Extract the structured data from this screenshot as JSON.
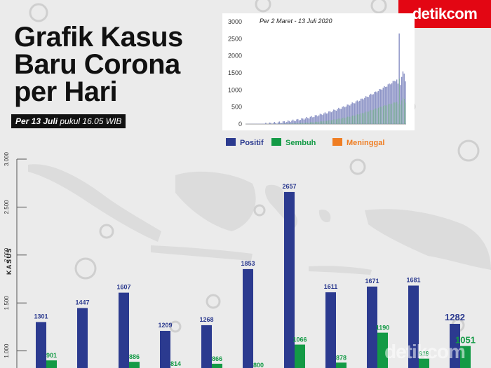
{
  "brand": {
    "logo_text": "detikcom",
    "watermark_text": "detikcom"
  },
  "header": {
    "title_lines": [
      "Grafik Kasus",
      "Baru Corona",
      "per Hari"
    ],
    "subtitle_bold": "Per 13 Juli",
    "subtitle_rest": " pukul 16.05 WIB"
  },
  "inset": {
    "date_range": "Per 2 Maret - 13 Juli 2020",
    "ticks": [
      "3000",
      "2500",
      "2000",
      "1500",
      "1000",
      "500",
      "0"
    ]
  },
  "legend": {
    "items": [
      {
        "label": "Positif",
        "color": "#2b3a8f"
      },
      {
        "label": "Sembuh",
        "color": "#139a45"
      },
      {
        "label": "Meninggal",
        "color": "#ef7d22"
      }
    ]
  },
  "colors": {
    "positive": "#2b3a8f",
    "recovered": "#139a45",
    "deaths": "#ef7d22",
    "positive_label": "#2b3a8f",
    "recovered_label": "#139a45"
  },
  "chart_data": {
    "type": "bar",
    "ylabel": "KASUS",
    "yticks": [
      "3.000",
      "2.500",
      "2.000",
      "1.500",
      "1.000"
    ],
    "ylim": [
      0,
      3000
    ],
    "series": [
      {
        "name": "Positif",
        "values": [
          1301,
          1447,
          1607,
          1209,
          1268,
          1853,
          2657,
          1611,
          1671,
          1681,
          1282
        ]
      },
      {
        "name": "Sembuh",
        "values": [
          901,
          null,
          886,
          814,
          866,
          800,
          1066,
          878,
          1190,
          919,
          1051
        ]
      }
    ]
  }
}
